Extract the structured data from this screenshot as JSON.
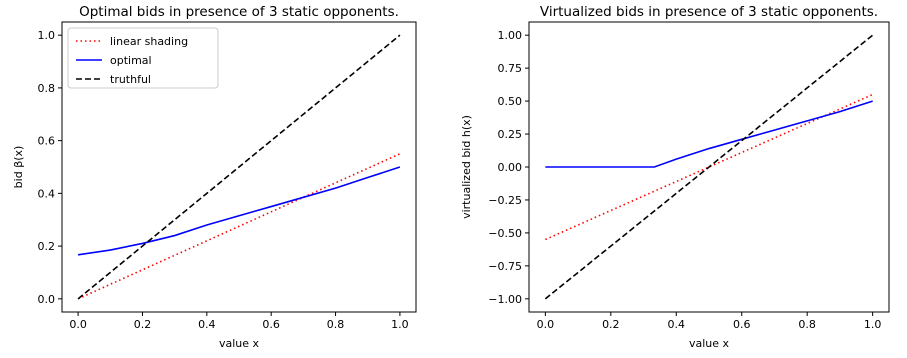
{
  "chart_data": [
    {
      "type": "line",
      "title": "Optimal bids in presence of 3 static opponents.",
      "xlabel": "value x",
      "ylabel": "bid β(x)",
      "xlim": [
        -0.05,
        1.05
      ],
      "ylim": [
        -0.05,
        1.05
      ],
      "xticks": [
        0.0,
        0.2,
        0.4,
        0.6,
        0.8,
        1.0
      ],
      "xtick_labels": [
        "0.0",
        "0.2",
        "0.4",
        "0.6",
        "0.8",
        "1.0"
      ],
      "yticks": [
        0.0,
        0.2,
        0.4,
        0.6,
        0.8,
        1.0
      ],
      "ytick_labels": [
        "0.0",
        "0.2",
        "0.4",
        "0.6",
        "0.8",
        "1.0"
      ],
      "grid": false,
      "legend": "top-left",
      "series": [
        {
          "name": "linear shading",
          "color": "#ff0000",
          "style": "dotted",
          "x": [
            0.0,
            1.0
          ],
          "y": [
            0.0,
            0.55
          ]
        },
        {
          "name": "optimal",
          "color": "#0000ff",
          "style": "solid",
          "x": [
            0.0,
            0.1,
            0.2,
            0.3,
            0.4,
            0.5,
            0.6,
            0.7,
            0.8,
            0.9,
            1.0
          ],
          "y": [
            0.167,
            0.185,
            0.21,
            0.24,
            0.28,
            0.315,
            0.35,
            0.385,
            0.42,
            0.46,
            0.5
          ]
        },
        {
          "name": "truthful",
          "color": "#000000",
          "style": "dashed",
          "x": [
            0.0,
            1.0
          ],
          "y": [
            0.0,
            1.0
          ]
        }
      ]
    },
    {
      "type": "line",
      "title": "Virtualized bids in presence of 3 static opponents.",
      "xlabel": "value x",
      "ylabel": "virtualized bid h(x)",
      "xlim": [
        -0.05,
        1.05
      ],
      "ylim": [
        -1.1,
        1.1
      ],
      "xticks": [
        0.0,
        0.2,
        0.4,
        0.6,
        0.8,
        1.0
      ],
      "xtick_labels": [
        "0.0",
        "0.2",
        "0.4",
        "0.6",
        "0.8",
        "1.0"
      ],
      "yticks": [
        -1.0,
        -0.75,
        -0.5,
        -0.25,
        0.0,
        0.25,
        0.5,
        0.75,
        1.0
      ],
      "ytick_labels": [
        "−1.00",
        "−0.75",
        "−0.50",
        "−0.25",
        "0.00",
        "0.25",
        "0.50",
        "0.75",
        "1.00"
      ],
      "grid": false,
      "legend": "",
      "series": [
        {
          "color": "#ff0000",
          "style": "dotted",
          "x": [
            0.0,
            1.0
          ],
          "y": [
            -0.55,
            0.55
          ]
        },
        {
          "color": "#0000ff",
          "style": "solid",
          "x": [
            0.0,
            0.333,
            0.4,
            0.5,
            0.6,
            0.7,
            0.8,
            0.9,
            1.0
          ],
          "y": [
            0.0,
            0.0,
            0.06,
            0.14,
            0.21,
            0.28,
            0.35,
            0.42,
            0.5
          ]
        },
        {
          "color": "#000000",
          "style": "dashed",
          "x": [
            0.0,
            1.0
          ],
          "y": [
            -1.0,
            1.0
          ]
        }
      ]
    }
  ]
}
